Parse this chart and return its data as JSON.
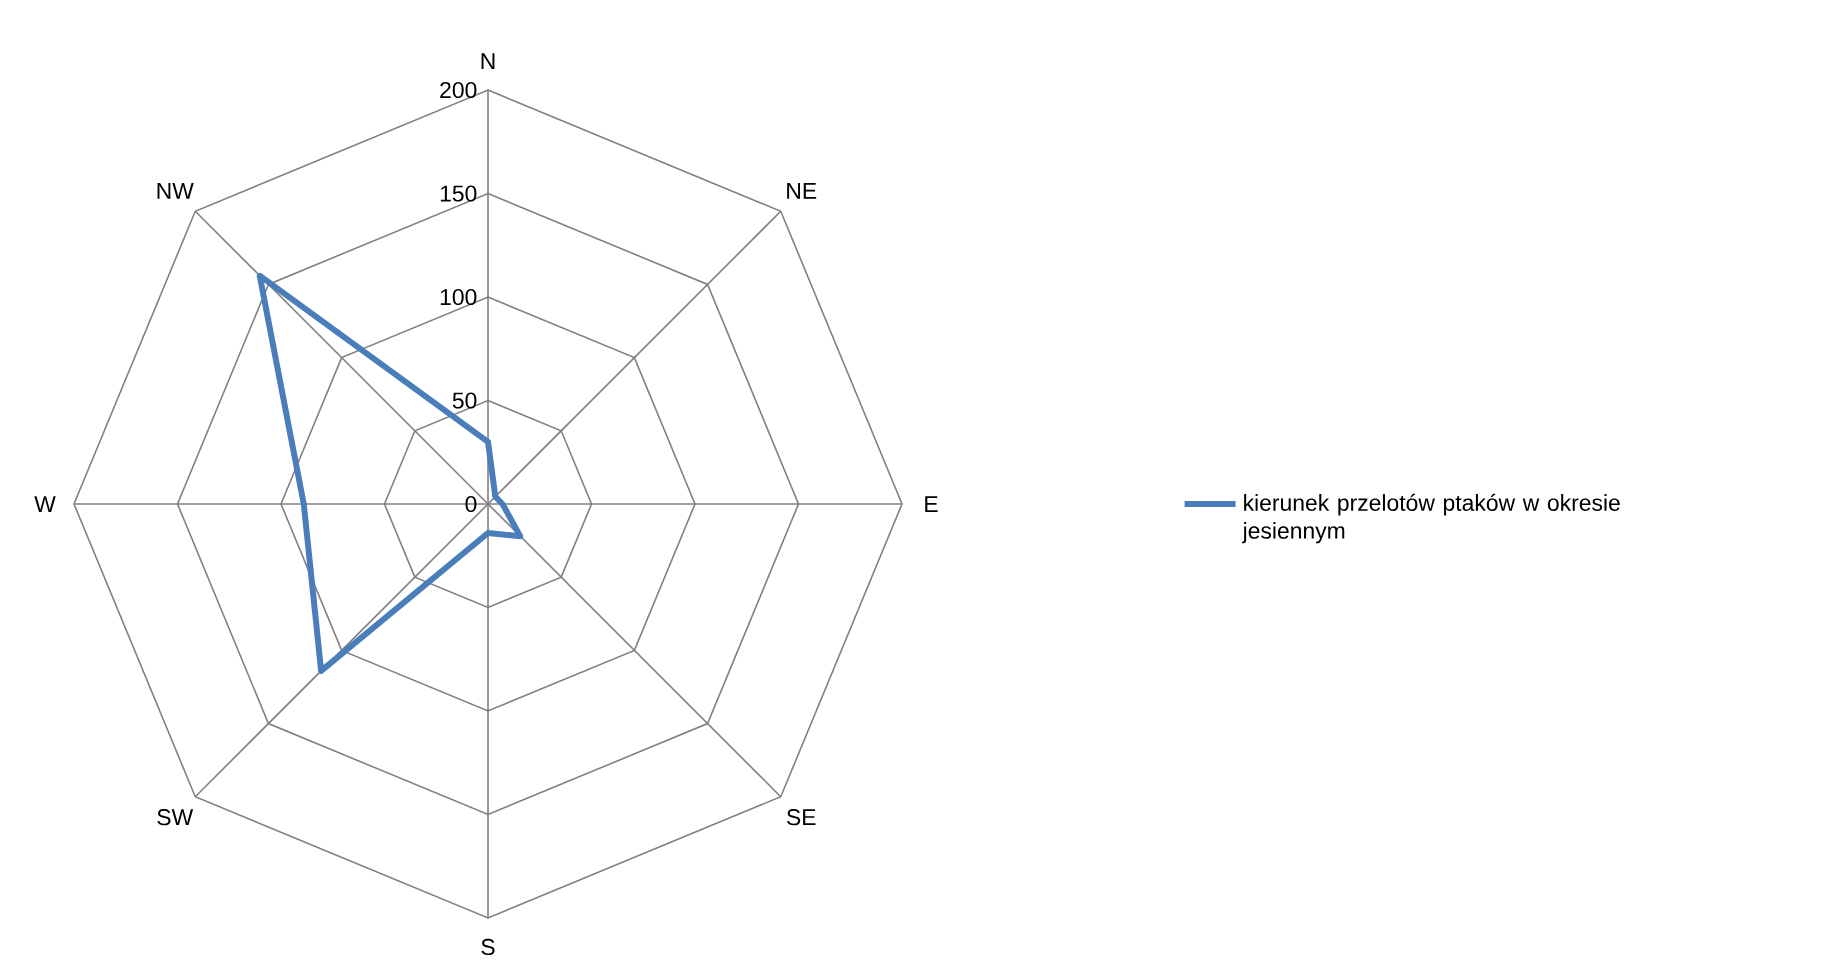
{
  "chart_data": {
    "type": "radar",
    "categories": [
      "N",
      "NE",
      "E",
      "SE",
      "S",
      "SW",
      "W",
      "NW"
    ],
    "series": [
      {
        "name": "kierunek przelotów ptaków w okresie jesiennym",
        "color": "#4a7ebb",
        "values": [
          30,
          5,
          7,
          22,
          14,
          114,
          89,
          156
        ]
      }
    ],
    "ylim": [
      0,
      200
    ],
    "yticks": [
      0,
      50,
      100,
      150,
      200
    ],
    "grid": true,
    "legend": "right"
  }
}
